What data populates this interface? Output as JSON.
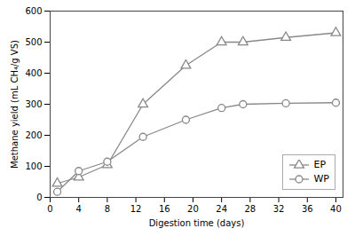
{
  "chart_data": {
    "type": "line",
    "xlabel": "Digestion time (days)",
    "ylabel": "Methane yield (mL CH₄/g VS)",
    "x": [
      1,
      4,
      8,
      13,
      19,
      24,
      27,
      33,
      40
    ],
    "series": [
      {
        "name": "EP",
        "color": "#888888",
        "marker": "triangle",
        "values": [
          45,
          65,
          105,
          300,
          425,
          500,
          500,
          515,
          530
        ]
      },
      {
        "name": "WP",
        "color": "#888888",
        "marker": "circle",
        "values": [
          18,
          85,
          115,
          195,
          250,
          288,
          300,
          303,
          305
        ]
      }
    ],
    "xlim": [
      0,
      41
    ],
    "ylim": [
      0,
      600
    ],
    "xticks": [
      0,
      4,
      8,
      12,
      16,
      20,
      24,
      28,
      32,
      36,
      40
    ],
    "yticks": [
      0,
      100,
      200,
      300,
      400,
      500,
      600
    ],
    "grid": false,
    "legend": "lower right"
  }
}
